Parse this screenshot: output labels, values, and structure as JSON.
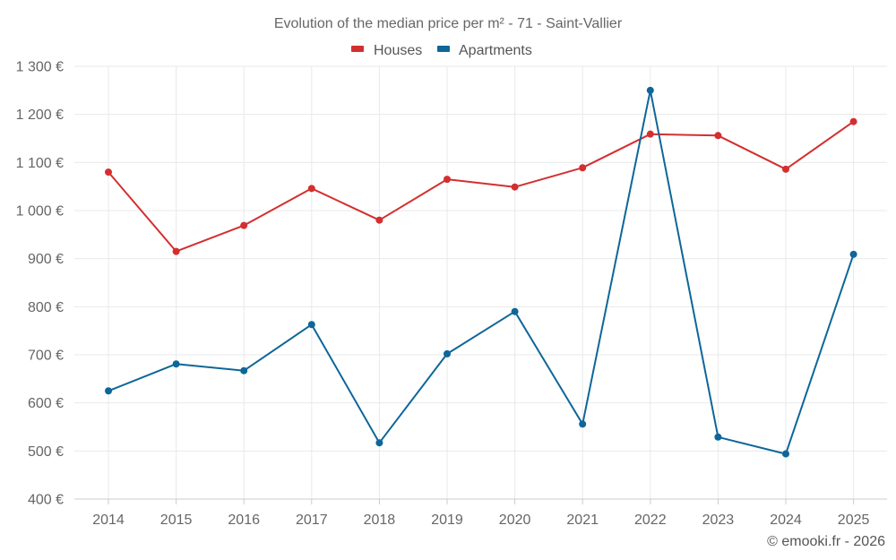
{
  "chart_data": {
    "type": "line",
    "title": "Evolution of the median price per m² - 71 - Saint-Vallier",
    "xlabel": "",
    "ylabel": "",
    "categories": [
      "2014",
      "2015",
      "2016",
      "2017",
      "2018",
      "2019",
      "2020",
      "2021",
      "2022",
      "2023",
      "2024",
      "2025"
    ],
    "series": [
      {
        "name": "Houses",
        "color": "#d32f2f",
        "values": [
          1080,
          915,
          969,
          1046,
          980,
          1065,
          1049,
          1089,
          1159,
          1156,
          1086,
          1185
        ]
      },
      {
        "name": "Apartments",
        "color": "#0e6699",
        "values": [
          625,
          681,
          667,
          763,
          517,
          702,
          790,
          556,
          1250,
          529,
          494,
          909
        ]
      }
    ],
    "ylim": [
      400,
      1300
    ],
    "yticks": [
      400,
      500,
      600,
      700,
      800,
      900,
      1000,
      1100,
      1200,
      1300
    ],
    "ytick_labels": [
      "400 €",
      "500 €",
      "600 €",
      "700 €",
      "800 €",
      "900 €",
      "1 000 €",
      "1 100 €",
      "1 200 €",
      "1 300 €"
    ],
    "grid": true,
    "legend_position": "top-center"
  },
  "credit": "© emooki.fr - 2026"
}
